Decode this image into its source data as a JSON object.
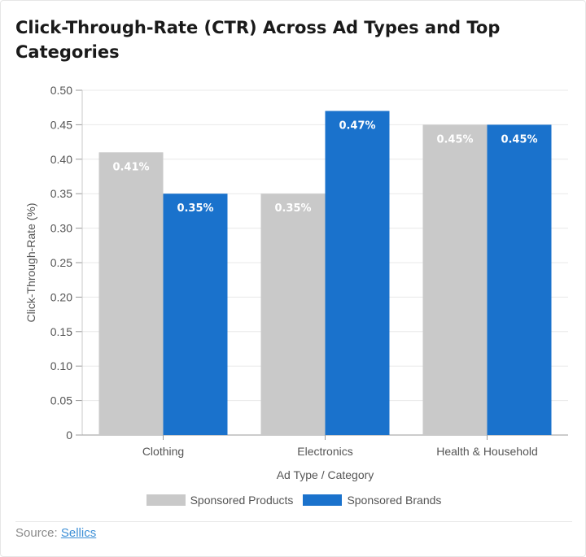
{
  "title": "Click-Through-Rate (CTR) Across Ad Types and Top Categories",
  "source": {
    "prefix": "Source: ",
    "link_text": "Sellics"
  },
  "colors": {
    "sponsored_products": "#c9c9c9",
    "sponsored_brands": "#1a72cc",
    "grid": "#e8e8e8",
    "axis_text": "#555555"
  },
  "chart_data": {
    "type": "bar",
    "title": "Click-Through-Rate (CTR) Across Ad Types and Top Categories",
    "xlabel": "Ad Type / Category",
    "ylabel": "Click-Through-Rate (%)",
    "ylim": [
      0,
      0.5
    ],
    "yticks": [
      "0",
      "0.05",
      "0.10",
      "0.15",
      "0.20",
      "0.25",
      "0.30",
      "0.35",
      "0.40",
      "0.45",
      "0.50"
    ],
    "grid": true,
    "legend_position": "bottom",
    "categories": [
      "Clothing",
      "Electronics",
      "Health & Household"
    ],
    "series": [
      {
        "name": "Sponsored Products",
        "values": [
          0.41,
          0.35,
          0.45
        ],
        "labels": [
          "0.41%",
          "0.35%",
          "0.45%"
        ]
      },
      {
        "name": "Sponsored Brands",
        "values": [
          0.35,
          0.47,
          0.45
        ],
        "labels": [
          "0.35%",
          "0.47%",
          "0.45%"
        ]
      }
    ]
  }
}
